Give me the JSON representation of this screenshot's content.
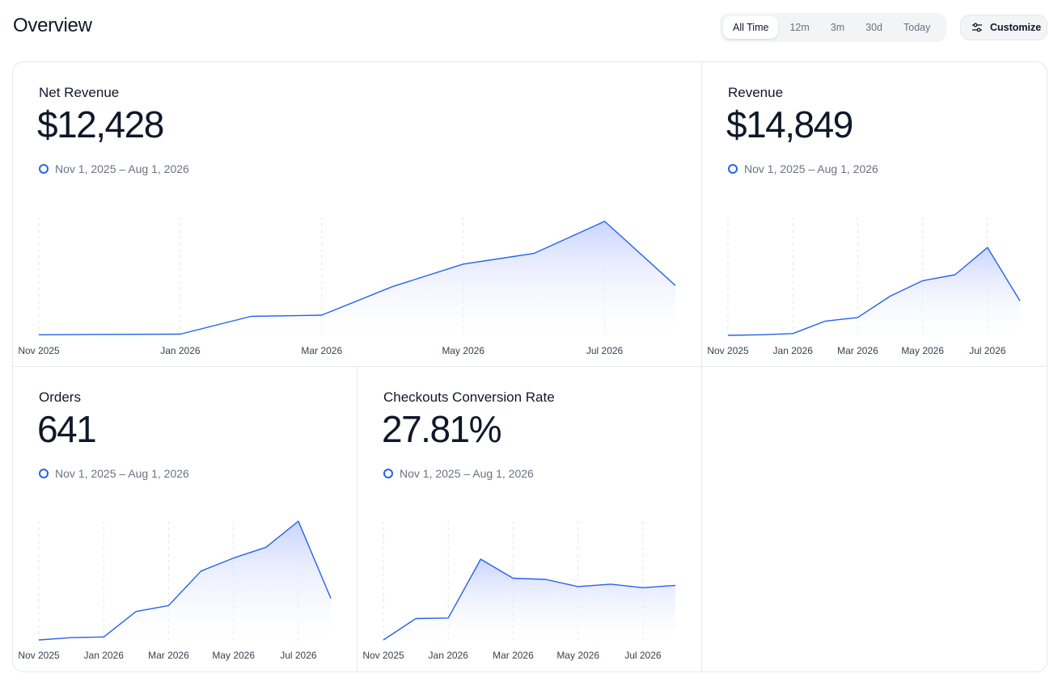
{
  "header": {
    "title": "Overview",
    "range_tabs": [
      {
        "label": "All Time",
        "active": true
      },
      {
        "label": "12m",
        "active": false
      },
      {
        "label": "3m",
        "active": false
      },
      {
        "label": "30d",
        "active": false
      },
      {
        "label": "Today",
        "active": false
      }
    ],
    "customize_label": "Customize",
    "customize_icon": "sliders-icon"
  },
  "colors": {
    "accent": "#2563eb",
    "fill_top": "#c7d2fe",
    "grid": "#e5e7eb"
  },
  "widgets": [
    {
      "title": "Net Revenue",
      "value": "$12,428",
      "range": "Nov 1, 2025 – Aug 1, 2026"
    },
    {
      "title": "Revenue",
      "value": "$14,849",
      "range": "Nov 1, 2025 – Aug 1, 2026"
    },
    {
      "title": "Orders",
      "value": "641",
      "range": "Nov 1, 2025 – Aug 1, 2026"
    },
    {
      "title": "Checkouts Conversion Rate",
      "value": "27.81%",
      "range": "Nov 1, 2025 – Aug 1, 2026"
    }
  ],
  "chart_data": [
    {
      "type": "area",
      "x": [
        "2025-11",
        "2025-12",
        "2026-01",
        "2026-02",
        "2026-03",
        "2026-04",
        "2026-05",
        "2026-06",
        "2026-07",
        "2026-08"
      ],
      "tick_labels": [
        "Nov 2025",
        "Jan 2026",
        "Mar 2026",
        "May 2026",
        "Jul 2026"
      ],
      "tick_months": [
        "2025-11",
        "2026-01",
        "2026-03",
        "2026-05",
        "2026-07"
      ],
      "values": [
        0.5,
        0.8,
        1.0,
        16,
        17,
        41,
        60,
        69,
        96,
        42
      ],
      "ylim": [
        0,
        100
      ],
      "grid": "vertical-dashed"
    },
    {
      "type": "area",
      "x": [
        "2025-11",
        "2025-12",
        "2026-01",
        "2026-02",
        "2026-03",
        "2026-04",
        "2026-05",
        "2026-06",
        "2026-07",
        "2026-08"
      ],
      "tick_labels": [
        "Nov 2025",
        "Jan 2026",
        "Mar 2026",
        "May 2026",
        "Jul 2026"
      ],
      "tick_months": [
        "2025-11",
        "2026-01",
        "2026-03",
        "2026-05",
        "2026-07"
      ],
      "values": [
        0,
        0.5,
        1.5,
        12,
        15,
        33,
        46,
        51,
        74,
        29
      ],
      "ylim": [
        0,
        100
      ],
      "grid": "vertical-dashed"
    },
    {
      "type": "area",
      "x": [
        "2025-11",
        "2025-12",
        "2026-01",
        "2026-02",
        "2026-03",
        "2026-04",
        "2026-05",
        "2026-06",
        "2026-07",
        "2026-08"
      ],
      "tick_labels": [
        "Nov 2025",
        "Jan 2026",
        "Mar 2026",
        "May 2026",
        "Jul 2026"
      ],
      "tick_months": [
        "2025-11",
        "2026-01",
        "2026-03",
        "2026-05",
        "2026-07"
      ],
      "values": [
        0,
        2,
        2.5,
        24,
        29,
        58,
        69,
        78,
        100,
        35
      ],
      "ylim": [
        0,
        100
      ],
      "grid": "vertical-dashed"
    },
    {
      "type": "area",
      "x": [
        "2025-11",
        "2025-12",
        "2026-01",
        "2026-02",
        "2026-03",
        "2026-04",
        "2026-05",
        "2026-06",
        "2026-07",
        "2026-08"
      ],
      "tick_labels": [
        "Nov 2025",
        "Jan 2026",
        "Mar 2026",
        "May 2026",
        "Jul 2026"
      ],
      "tick_months": [
        "2025-11",
        "2026-01",
        "2026-03",
        "2026-05",
        "2026-07"
      ],
      "values": [
        0,
        18,
        18.5,
        68,
        52,
        51,
        45,
        47,
        44,
        46
      ],
      "ylim": [
        0,
        100
      ],
      "grid": "vertical-dashed"
    }
  ]
}
